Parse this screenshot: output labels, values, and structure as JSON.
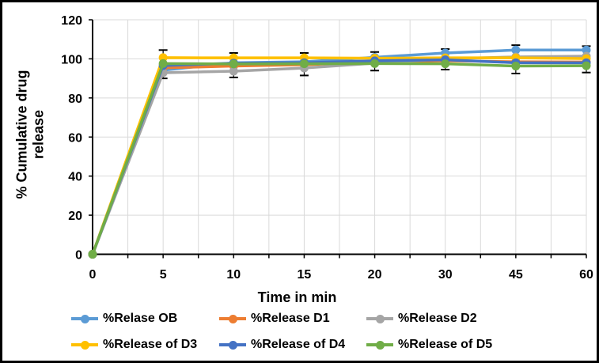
{
  "chart_data": {
    "type": "line",
    "title": "",
    "xlabel": "Time in min",
    "ylabel": "% Cumulative drug release",
    "ylabel_lines": [
      "% Cumulative drug",
      "release"
    ],
    "categories": [
      0,
      5,
      10,
      15,
      20,
      30,
      45,
      60
    ],
    "x_tick_labels": [
      "0",
      "5",
      "10",
      "15",
      "20",
      "30",
      "45",
      "60"
    ],
    "y_ticks": [
      0,
      20,
      40,
      60,
      80,
      100,
      120
    ],
    "y_tick_labels": [
      "0",
      "20",
      "40",
      "60",
      "80",
      "100",
      "120"
    ],
    "ylim": [
      0,
      120
    ],
    "grid": true,
    "legend_position": "bottom",
    "series": [
      {
        "name": "%Relase OB",
        "color": "#5B9BD5",
        "values": [
          0,
          94.2,
          98.0,
          98.5,
          100.8,
          103.0,
          104.5,
          104.5
        ]
      },
      {
        "name": "%Release D1",
        "color": "#ED7D31",
        "values": [
          0,
          95.4,
          96.3,
          97.0,
          98.3,
          99.0,
          98.5,
          98.4
        ]
      },
      {
        "name": "%Release D2",
        "color": "#A5A5A5",
        "values": [
          0,
          92.9,
          93.7,
          95.3,
          97.8,
          100.0,
          101.0,
          101.4
        ]
      },
      {
        "name": "%Release of D3",
        "color": "#FFC000",
        "values": [
          0,
          100.6,
          100.5,
          100.5,
          100.3,
          100.5,
          100.5,
          100.1
        ]
      },
      {
        "name": "%Release of D4",
        "color": "#4472C4",
        "values": [
          0,
          96.6,
          97.8,
          98.0,
          99.0,
          99.5,
          98.0,
          98.0
        ]
      },
      {
        "name": "%Release of D5",
        "color": "#70AD47",
        "values": [
          0,
          97.6,
          97.4,
          97.5,
          97.6,
          97.5,
          96.3,
          96.5
        ]
      }
    ],
    "error_bars": {
      "top": [
        null,
        104.5,
        103.0,
        103.0,
        103.5,
        105.0,
        107.0,
        106.5
      ],
      "bottom": [
        null,
        90.0,
        90.5,
        91.5,
        94.0,
        94.5,
        92.5,
        93.0
      ]
    },
    "colors": {
      "axis": "#000000",
      "gridline": "#D9D9D9",
      "error_bar": "#000000",
      "frame_border": "#000000"
    }
  }
}
